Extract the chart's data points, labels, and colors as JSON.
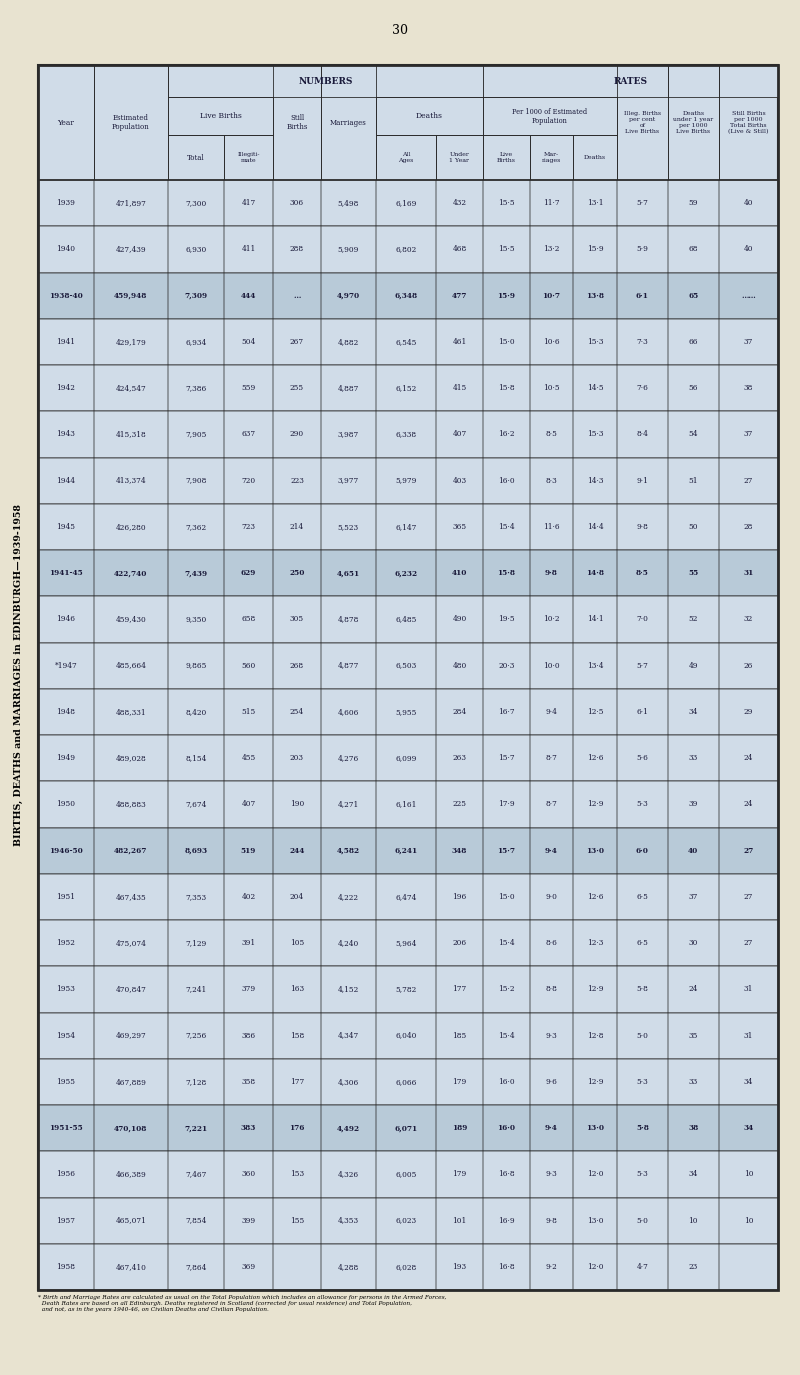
{
  "page_number": "30",
  "title": "BIRTHS, DEATHS and MARRIAGES in EDINBURGH—1939-1958",
  "bg_color": "#e8e3d0",
  "table_bg": "#d0dce8",
  "group_bg": "#b8cad8",
  "text_color": "#1a1a3a",
  "rows": [
    [
      "1939",
      "471,897",
      "7,300",
      "417",
      "306",
      "5,498",
      "6,169",
      "432",
      "15·5",
      "11·7",
      "13·1",
      "5·7",
      "59",
      "40"
    ],
    [
      "1940",
      "427,439",
      "6,930",
      "411",
      "288",
      "5,909",
      "6,802",
      "468",
      "15·5",
      "13·2",
      "15·9",
      "5·9",
      "68",
      "40"
    ],
    [
      "1938-40",
      "459,948",
      "7,309",
      "444",
      "…",
      "4,970",
      "6,348",
      "477",
      "15·9",
      "10·7",
      "13·8",
      "6·1",
      "65",
      "……"
    ],
    [
      "1941",
      "429,179",
      "6,934",
      "504",
      "267",
      "4,882",
      "6,545",
      "461",
      "15·0",
      "10·6",
      "15·3",
      "7·3",
      "66",
      "37"
    ],
    [
      "1942",
      "424,547",
      "7,386",
      "559",
      "255",
      "4,887",
      "6,152",
      "415",
      "15·8",
      "10·5",
      "14·5",
      "7·6",
      "56",
      "38"
    ],
    [
      "1943",
      "415,318",
      "7,905",
      "637",
      "290",
      "3,987",
      "6,338",
      "407",
      "16·2",
      "8·5",
      "15·3",
      "8·4",
      "54",
      "37"
    ],
    [
      "1944",
      "413,374",
      "7,908",
      "720",
      "223",
      "3,977",
      "5,979",
      "403",
      "16·0",
      "8·3",
      "14·3",
      "9·1",
      "51",
      "27"
    ],
    [
      "1945",
      "426,280",
      "7,362",
      "723",
      "214",
      "5,523",
      "6,147",
      "365",
      "15·4",
      "11·6",
      "14·4",
      "9·8",
      "50",
      "28"
    ],
    [
      "1941-45",
      "422,740",
      "7,439",
      "629",
      "250",
      "4,651",
      "6,232",
      "410",
      "15·8",
      "9·8",
      "14·8",
      "8·5",
      "55",
      "31"
    ],
    [
      "1946",
      "459,430",
      "9,350",
      "658",
      "305",
      "4,878",
      "6,485",
      "490",
      "19·5",
      "10·2",
      "14·1",
      "7·0",
      "52",
      "32"
    ],
    [
      "*1947",
      "485,664",
      "9,865",
      "560",
      "268",
      "4,877",
      "6,503",
      "480",
      "20·3",
      "10·0",
      "13·4",
      "5·7",
      "49",
      "26"
    ],
    [
      "1948",
      "488,331",
      "8,420",
      "515",
      "254",
      "4,606",
      "5,955",
      "284",
      "16·7",
      "9·4",
      "12·5",
      "6·1",
      "34",
      "29"
    ],
    [
      "1949",
      "489,028",
      "8,154",
      "455",
      "203",
      "4,276",
      "6,099",
      "263",
      "15·7",
      "8·7",
      "12·6",
      "5·6",
      "33",
      "24"
    ],
    [
      "1950",
      "488,883",
      "7,674",
      "407",
      "190",
      "4,271",
      "6,161",
      "225",
      "17·9",
      "8·7",
      "12·9",
      "5·3",
      "39",
      "24"
    ],
    [
      "1946-50",
      "482,267",
      "8,693",
      "519",
      "244",
      "4,582",
      "6,241",
      "348",
      "15·7",
      "9·4",
      "13·0",
      "6·0",
      "40",
      "27"
    ],
    [
      "1951",
      "467,435",
      "7,353",
      "402",
      "204",
      "4,222",
      "6,474",
      "196",
      "15·0",
      "9·0",
      "12·6",
      "6·5",
      "37",
      "27"
    ],
    [
      "1952",
      "475,074",
      "7,129",
      "391",
      "105",
      "4,240",
      "5,964",
      "206",
      "15·4",
      "8·6",
      "12·3",
      "6·5",
      "30",
      "27"
    ],
    [
      "1953",
      "470,847",
      "7,241",
      "379",
      "163",
      "4,152",
      "5,782",
      "177",
      "15·2",
      "8·8",
      "12·9",
      "5·8",
      "24",
      "31"
    ],
    [
      "1954",
      "469,297",
      "7,256",
      "386",
      "158",
      "4,347",
      "6,040",
      "185",
      "15·4",
      "9·3",
      "12·8",
      "5·0",
      "35",
      "31"
    ],
    [
      "1955",
      "467,889",
      "7,128",
      "358",
      "177",
      "4,306",
      "6,066",
      "179",
      "16·0",
      "9·6",
      "12·9",
      "5·3",
      "33",
      "34"
    ],
    [
      "1951-55",
      "470,108",
      "7,221",
      "383",
      "176",
      "4,492",
      "6,071",
      "189",
      "16·0",
      "9·4",
      "13·0",
      "5·8",
      "38",
      "34"
    ],
    [
      "1956",
      "466,389",
      "7,467",
      "360",
      "153",
      "4,326",
      "6,005",
      "179",
      "16·8",
      "9·3",
      "12·0",
      "5·3",
      "34",
      "10"
    ],
    [
      "1957",
      "465,071",
      "7,854",
      "399",
      "155",
      "4,353",
      "6,023",
      "101",
      "16·9",
      "9·8",
      "13·0",
      "5·0",
      "10",
      "10"
    ],
    [
      "1958",
      "467,410",
      "7,864",
      "369",
      "",
      "4,288",
      "6,028",
      "193",
      "16·8",
      "9·2",
      "12·0",
      "4·7",
      "23",
      ""
    ]
  ],
  "group_rows": [
    "1938-40",
    "1941-45",
    "1946-50",
    "1951-55"
  ],
  "footnote": "* Birth and Marriage Rates are calculated as usual on the Total Population which includes an allowance for persons in the Armed Forces,\n  Death Rates are based on all Edinburgh. Deaths registered in Scotland (corrected for usual residence) and Total Population,\n  and not, as in the years 1940-46, on Civilian Deaths and Civilian Population."
}
